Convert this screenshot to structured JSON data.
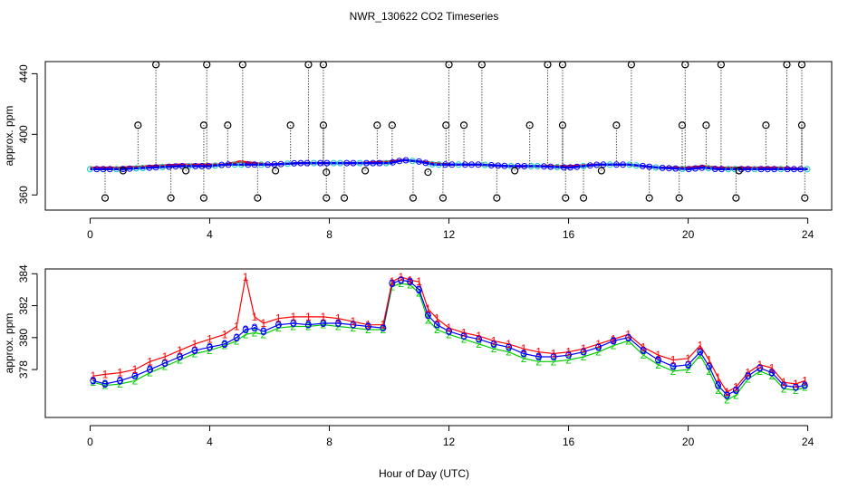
{
  "figure": {
    "title": "NWR_130622  CO2 Timeseries",
    "xlabel": "Hour of Day (UTC)"
  },
  "colors": {
    "axis": "#000000",
    "series1": "#ff0000",
    "series2": "#00cc00",
    "series3": "#0000ff",
    "measured": "#00c8c8",
    "outlier": "#000000"
  },
  "chart_data": [
    {
      "type": "scatter",
      "panel": "top",
      "ylabel": "approx. ppm",
      "xlim": [
        -1.5,
        24.8
      ],
      "ylim": [
        350,
        448
      ],
      "x_ticks": [
        0,
        4,
        8,
        12,
        16,
        20,
        24
      ],
      "y_ticks": [
        360,
        400,
        440
      ],
      "baseline_series": [
        {
          "name": "red",
          "x": [
            0,
            1,
            2,
            3,
            4,
            4.5,
            5,
            5.5,
            6,
            7,
            8,
            9,
            10,
            10.5,
            11,
            11.5,
            12,
            13,
            14,
            15,
            16,
            17,
            18,
            19,
            20,
            20.5,
            21,
            22,
            23,
            24
          ],
          "y": [
            378,
            378,
            379,
            380,
            380,
            380,
            382,
            381,
            380,
            381,
            381,
            381,
            382,
            383,
            382,
            381,
            380,
            380,
            379,
            379,
            379,
            380,
            380,
            378,
            378,
            379,
            378,
            378,
            378,
            377
          ]
        },
        {
          "name": "blue",
          "x": [
            0,
            1,
            2,
            3,
            4,
            4.5,
            5,
            5.5,
            6,
            7,
            8,
            9,
            10,
            10.5,
            11,
            11.5,
            12,
            13,
            14,
            15,
            16,
            17,
            18,
            19,
            20,
            20.5,
            21,
            22,
            23,
            24
          ],
          "y": [
            377,
            377,
            378,
            379,
            379,
            380,
            380,
            380,
            380,
            381,
            381,
            381,
            381,
            383,
            382,
            380,
            380,
            380,
            379,
            379,
            378,
            380,
            380,
            378,
            377,
            378,
            377,
            377,
            377,
            377
          ]
        }
      ],
      "outlier_high": {
        "x": [
          2.2,
          3.9,
          5.1,
          7.3,
          7.8,
          12.0,
          13.1,
          15.3,
          15.8,
          18.1,
          19.9,
          21.1,
          23.3,
          23.8
        ],
        "y": [
          446,
          446,
          446,
          446,
          446,
          446,
          446,
          446,
          446,
          446,
          446,
          446,
          446,
          446
        ]
      },
      "outlier_mid": {
        "x": [
          1.6,
          3.8,
          4.6,
          6.7,
          7.8,
          9.6,
          10.1,
          11.9,
          12.5,
          14.7,
          15.8,
          17.6,
          19.8,
          20.6,
          22.6,
          23.8
        ],
        "y": [
          406,
          406,
          406,
          406,
          406,
          406,
          406,
          406,
          406,
          406,
          406,
          406,
          406,
          406,
          406,
          406
        ]
      },
      "outlier_low": {
        "x": [
          0.5,
          2.7,
          3.8,
          5.6,
          7.9,
          8.5,
          10.8,
          11.8,
          13.6,
          15.9,
          16.5,
          18.7,
          19.7,
          21.6,
          23.9
        ],
        "y": [
          358,
          358,
          358,
          358,
          358,
          358,
          358,
          358,
          358,
          358,
          358,
          358,
          358,
          358,
          358
        ]
      },
      "outlier_near": {
        "x": [
          1.1,
          3.2,
          6.2,
          7.9,
          9.2,
          11.3,
          14.2,
          17.1,
          21.7
        ],
        "y": [
          376,
          376,
          376,
          375,
          376,
          375,
          376,
          376,
          376
        ]
      }
    },
    {
      "type": "line",
      "panel": "bottom",
      "ylabel": "approx. ppm",
      "xlim": [
        -1.5,
        24.8
      ],
      "ylim": [
        375.0,
        384.3
      ],
      "x_ticks": [
        0,
        4,
        8,
        12,
        16,
        20,
        24
      ],
      "y_ticks": [
        378,
        380,
        382,
        384
      ],
      "series": [
        {
          "name": "1",
          "marker": "1",
          "x": [
            0.1,
            0.5,
            1.0,
            1.5,
            2.0,
            2.5,
            3.0,
            3.5,
            4.0,
            4.5,
            4.9,
            5.2,
            5.5,
            5.8,
            6.3,
            6.8,
            7.3,
            7.8,
            8.3,
            8.8,
            9.3,
            9.8,
            10.1,
            10.4,
            10.7,
            11.0,
            11.3,
            11.6,
            12.0,
            12.5,
            13.0,
            13.5,
            14.0,
            14.5,
            15.0,
            15.5,
            16.0,
            16.5,
            17.0,
            17.5,
            18.0,
            18.5,
            19.0,
            19.5,
            20.0,
            20.4,
            20.7,
            21.0,
            21.3,
            21.6,
            22.0,
            22.4,
            22.8,
            23.2,
            23.6,
            23.9
          ],
          "y": [
            377.6,
            377.7,
            377.8,
            378.0,
            378.5,
            378.8,
            379.2,
            379.6,
            379.9,
            380.2,
            380.7,
            383.8,
            381.3,
            380.9,
            381.2,
            381.3,
            381.3,
            381.3,
            381.2,
            381.0,
            380.8,
            380.8,
            383.5,
            383.8,
            383.6,
            383.5,
            381.8,
            381.2,
            380.6,
            380.3,
            380.1,
            379.8,
            379.6,
            379.3,
            379.1,
            379.0,
            379.1,
            379.3,
            379.6,
            379.9,
            380.2,
            379.4,
            378.9,
            378.6,
            378.7,
            379.5,
            378.6,
            377.5,
            376.6,
            376.9,
            377.8,
            378.3,
            378.1,
            377.2,
            377.1,
            377.3
          ]
        },
        {
          "name": "2",
          "marker": "2",
          "x": [
            0.1,
            0.5,
            1.0,
            1.5,
            2.0,
            2.5,
            3.0,
            3.5,
            4.0,
            4.5,
            4.9,
            5.2,
            5.5,
            5.8,
            6.3,
            6.8,
            7.3,
            7.8,
            8.3,
            8.8,
            9.3,
            9.8,
            10.1,
            10.4,
            10.7,
            11.0,
            11.3,
            11.6,
            12.0,
            12.5,
            13.0,
            13.5,
            14.0,
            14.5,
            15.0,
            15.5,
            16.0,
            16.5,
            17.0,
            17.5,
            18.0,
            18.5,
            19.0,
            19.5,
            20.0,
            20.4,
            20.7,
            21.0,
            21.3,
            21.6,
            22.0,
            22.4,
            22.8,
            23.2,
            23.6,
            23.9
          ],
          "y": [
            377.2,
            377.0,
            377.1,
            377.3,
            377.8,
            378.2,
            378.6,
            379.0,
            379.2,
            379.5,
            379.8,
            380.2,
            380.3,
            380.2,
            380.6,
            380.7,
            380.7,
            380.8,
            380.7,
            380.6,
            380.5,
            380.5,
            383.2,
            383.4,
            383.3,
            382.8,
            381.1,
            380.5,
            380.2,
            379.9,
            379.6,
            379.3,
            379.1,
            378.7,
            378.5,
            378.5,
            378.6,
            378.8,
            379.1,
            379.5,
            379.8,
            378.9,
            378.3,
            377.9,
            378.0,
            378.9,
            377.9,
            376.7,
            376.1,
            376.4,
            377.4,
            377.9,
            377.6,
            376.8,
            376.7,
            376.9
          ]
        },
        {
          "name": "3",
          "marker": "3",
          "x": [
            0.1,
            0.5,
            1.0,
            1.5,
            2.0,
            2.5,
            3.0,
            3.5,
            4.0,
            4.5,
            4.9,
            5.2,
            5.5,
            5.8,
            6.3,
            6.8,
            7.3,
            7.8,
            8.3,
            8.8,
            9.3,
            9.8,
            10.1,
            10.4,
            10.7,
            11.0,
            11.3,
            11.6,
            12.0,
            12.5,
            13.0,
            13.5,
            14.0,
            14.5,
            15.0,
            15.5,
            16.0,
            16.5,
            17.0,
            17.5,
            18.0,
            18.5,
            19.0,
            19.5,
            20.0,
            20.4,
            20.7,
            21.0,
            21.3,
            21.6,
            22.0,
            22.4,
            22.8,
            23.2,
            23.6,
            23.9
          ],
          "y": [
            377.3,
            377.1,
            377.3,
            377.6,
            378.0,
            378.4,
            378.8,
            379.2,
            379.4,
            379.6,
            380.0,
            380.5,
            380.6,
            380.4,
            380.8,
            380.9,
            380.8,
            380.9,
            380.9,
            380.8,
            380.7,
            380.6,
            383.4,
            383.6,
            383.5,
            383.0,
            381.4,
            380.8,
            380.4,
            380.1,
            379.9,
            379.6,
            379.4,
            379.0,
            378.8,
            378.8,
            378.9,
            379.1,
            379.4,
            379.8,
            380.0,
            379.2,
            378.6,
            378.2,
            378.3,
            379.1,
            378.2,
            377.0,
            376.4,
            376.7,
            377.6,
            378.1,
            377.8,
            377.0,
            376.9,
            377.0
          ]
        }
      ]
    }
  ]
}
